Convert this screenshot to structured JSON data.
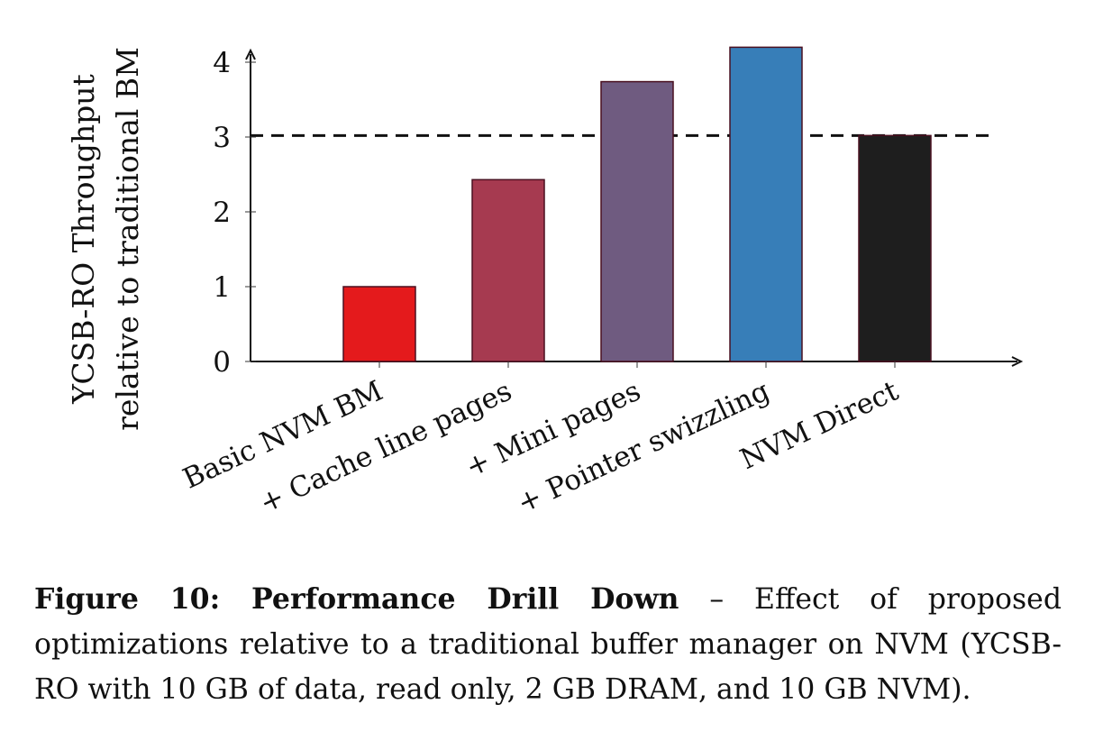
{
  "chart_data": {
    "type": "bar",
    "categories": [
      "Basic NVM BM",
      "+ Cache line pages",
      "+ Mini pages",
      "+ Pointer swizzling",
      "NVM Direct"
    ],
    "values": [
      1.0,
      2.43,
      3.74,
      4.2,
      3.02
    ],
    "colors": [
      "#e41a1c",
      "#a63a50",
      "#6f5b80",
      "#377eb8",
      "#1e1e1e"
    ],
    "reference_line": {
      "value": 3.02,
      "style": "dashed"
    },
    "ylabel": [
      "YCSB-RO Throughput",
      "relative to traditional BM"
    ],
    "xlabel": "",
    "yticks": [
      0,
      1,
      2,
      3,
      4
    ],
    "ylim": [
      0,
      4.2
    ],
    "grid": false,
    "legend": "none"
  },
  "caption": {
    "label": "Figure 10: Performance Drill Down",
    "text": " – Effect of proposed optimizations relative to a traditional buffer manager on NVM (YCSB-RO with 10 GB of data, read only, 2 GB DRAM, and 10 GB NVM)."
  }
}
